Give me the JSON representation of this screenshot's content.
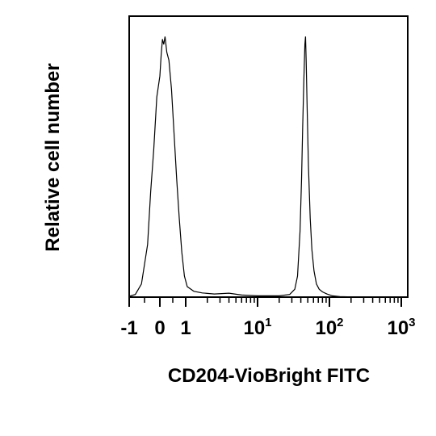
{
  "chart_data": {
    "type": "line",
    "title": "",
    "xlabel": "CD204-VioBright FITC",
    "ylabel": "Relative cell number",
    "x_scale": "biexponential (linear near 0, log above 1)",
    "grid": false,
    "legend": "none",
    "ylim": [
      0,
      100
    ],
    "x_ticks": [
      {
        "value": -1,
        "base": "-1",
        "exp": ""
      },
      {
        "value": 0,
        "base": "0",
        "exp": ""
      },
      {
        "value": 1,
        "base": "1",
        "exp": ""
      },
      {
        "value": 10,
        "base": "10",
        "exp": "1"
      },
      {
        "value": 100,
        "base": "10",
        "exp": "2"
      },
      {
        "value": 1000,
        "base": "10",
        "exp": "3"
      }
    ],
    "series": [
      {
        "color": "#000000",
        "points": [
          [
            -1.0,
            0.3
          ],
          [
            -0.8,
            1.0
          ],
          [
            -0.6,
            5
          ],
          [
            -0.4,
            20
          ],
          [
            -0.3,
            40
          ],
          [
            -0.2,
            56
          ],
          [
            -0.1,
            76
          ],
          [
            0.0,
            84
          ],
          [
            0.05,
            92
          ],
          [
            0.1,
            98
          ],
          [
            0.15,
            96
          ],
          [
            0.2,
            99
          ],
          [
            0.27,
            93
          ],
          [
            0.35,
            90
          ],
          [
            0.45,
            79
          ],
          [
            0.55,
            62
          ],
          [
            0.65,
            45
          ],
          [
            0.75,
            30
          ],
          [
            0.85,
            17
          ],
          [
            0.95,
            8
          ],
          [
            1.05,
            4
          ],
          [
            1.3,
            2.2
          ],
          [
            1.7,
            1.6
          ],
          [
            2.5,
            1.2
          ],
          [
            4,
            1.5
          ],
          [
            6,
            0.8
          ],
          [
            10,
            0.5
          ],
          [
            20,
            0.5
          ],
          [
            28,
            1.0
          ],
          [
            33,
            3
          ],
          [
            36,
            8
          ],
          [
            39,
            25
          ],
          [
            41,
            45
          ],
          [
            42.5,
            65
          ],
          [
            44,
            82
          ],
          [
            45.5,
            96
          ],
          [
            46.5,
            99
          ],
          [
            47.5,
            90
          ],
          [
            49,
            72
          ],
          [
            51,
            50
          ],
          [
            54,
            30
          ],
          [
            57,
            18
          ],
          [
            61,
            10
          ],
          [
            66,
            5
          ],
          [
            72,
            3
          ],
          [
            80,
            2
          ],
          [
            92,
            1.2
          ],
          [
            110,
            0.5
          ],
          [
            140,
            0.2
          ],
          [
            200,
            0.1
          ],
          [
            400,
            0.05
          ],
          [
            1000,
            0
          ]
        ]
      }
    ]
  }
}
